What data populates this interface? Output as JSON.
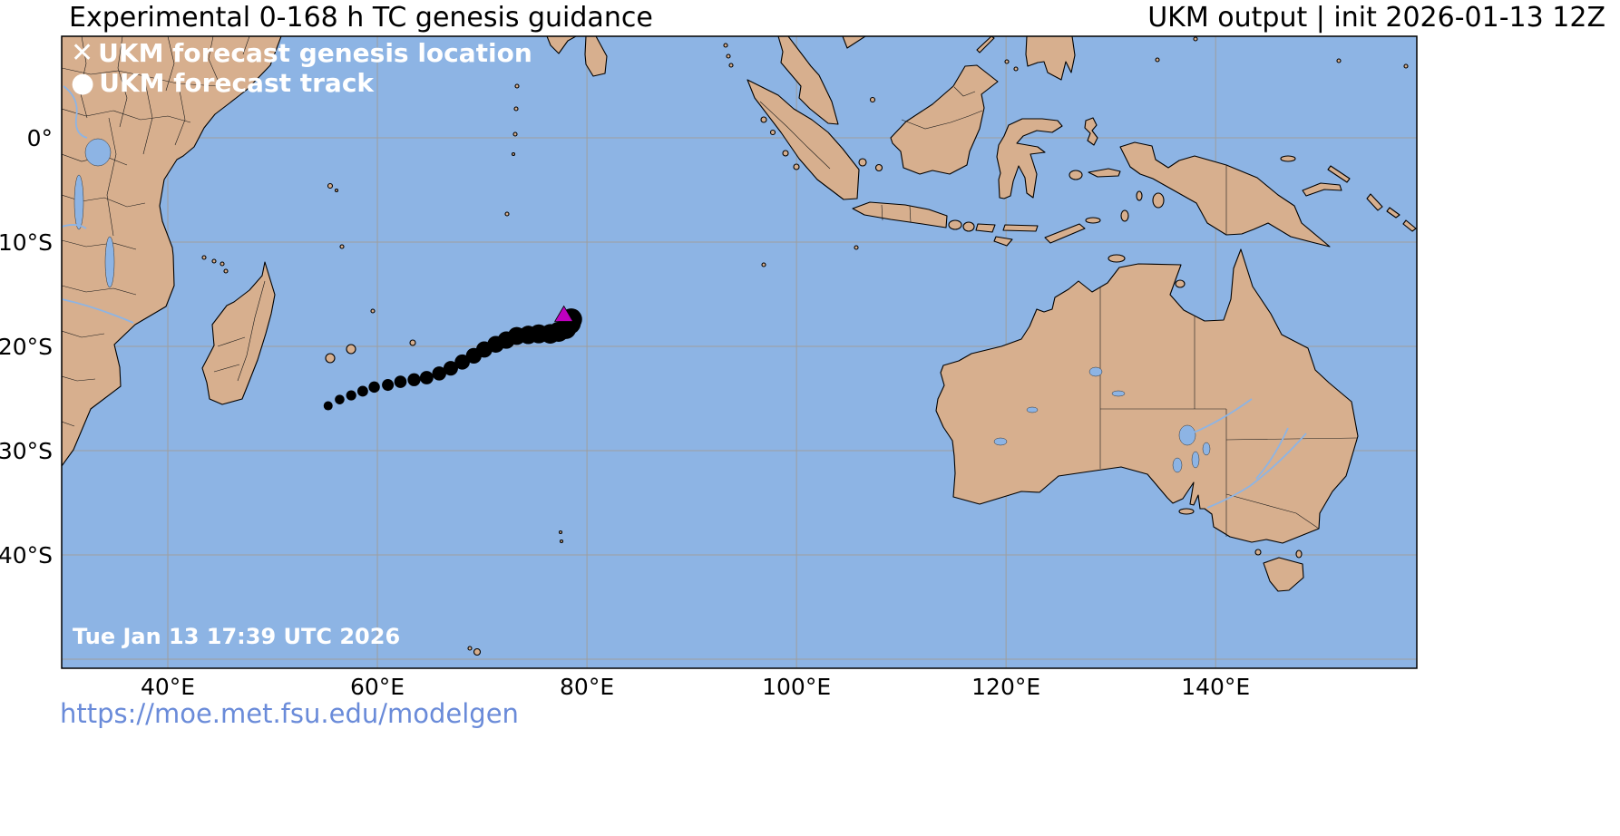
{
  "header": {
    "title": "Experimental 0-168 h TC genesis guidance",
    "model_info": "UKM output | init 2026-01-13 12Z"
  },
  "legend": {
    "genesis_symbol": "✕",
    "genesis_label": "UKM forecast genesis location",
    "track_symbol": "●",
    "track_label": "UKM forecast track"
  },
  "map": {
    "timestamp": "Tue Jan 13 17:39 UTC 2026",
    "grid": {
      "lons": [
        40,
        60,
        80,
        100,
        120,
        140
      ],
      "lats": [
        0,
        -10,
        -20,
        -30,
        -40,
        -50
      ]
    },
    "axes": {
      "lon_ticks": [
        {
          "value": 40,
          "label": "40°E"
        },
        {
          "value": 60,
          "label": "60°E"
        },
        {
          "value": 80,
          "label": "80°E"
        },
        {
          "value": 100,
          "label": "100°E"
        },
        {
          "value": 120,
          "label": "120°E"
        },
        {
          "value": 140,
          "label": "140°E"
        }
      ],
      "lat_ticks": [
        {
          "value": 0,
          "label": "0°"
        },
        {
          "value": -10,
          "label": "10°S"
        },
        {
          "value": -20,
          "label": "20°S"
        },
        {
          "value": -30,
          "label": "30°S"
        },
        {
          "value": -40,
          "label": "40°S"
        }
      ]
    },
    "colors": {
      "ocean": "#8db4e4",
      "land": "#d7af8e",
      "grid": "#9e9e9e",
      "track": "#000000",
      "genesis": "#bf00bf",
      "link": "#6a8bd9"
    }
  },
  "chart_data": {
    "type": "scatter",
    "title": "Experimental 0-168 h TC genesis guidance",
    "model": "UKM",
    "init": "2026-01-13 12Z",
    "map_extent": {
      "lon_min": 29.87,
      "lon_max": 159.2,
      "lat_min": -50.87,
      "lat_max": 9.74
    },
    "marker_min_px": 5,
    "marker_max_px": 12,
    "track": [
      [
        55.3,
        -25.7
      ],
      [
        56.4,
        -25.1
      ],
      [
        57.5,
        -24.7
      ],
      [
        58.6,
        -24.3
      ],
      [
        59.7,
        -23.9
      ],
      [
        61.0,
        -23.7
      ],
      [
        62.2,
        -23.4
      ],
      [
        63.5,
        -23.2
      ],
      [
        64.7,
        -23.0
      ],
      [
        65.9,
        -22.6
      ],
      [
        67.0,
        -22.1
      ],
      [
        68.1,
        -21.5
      ],
      [
        69.2,
        -20.9
      ],
      [
        70.2,
        -20.3
      ],
      [
        71.3,
        -19.8
      ],
      [
        72.3,
        -19.4
      ],
      [
        73.3,
        -19.0
      ],
      [
        74.4,
        -18.9
      ],
      [
        75.4,
        -18.8
      ],
      [
        76.5,
        -18.8
      ],
      [
        77.3,
        -18.6
      ],
      [
        78.0,
        -18.3
      ],
      [
        78.4,
        -17.8
      ],
      [
        78.5,
        -17.4
      ]
    ],
    "genesis": {
      "lon": 77.8,
      "lat": -17.0
    }
  },
  "footer": {
    "url": "https://moe.met.fsu.edu/modelgen"
  }
}
